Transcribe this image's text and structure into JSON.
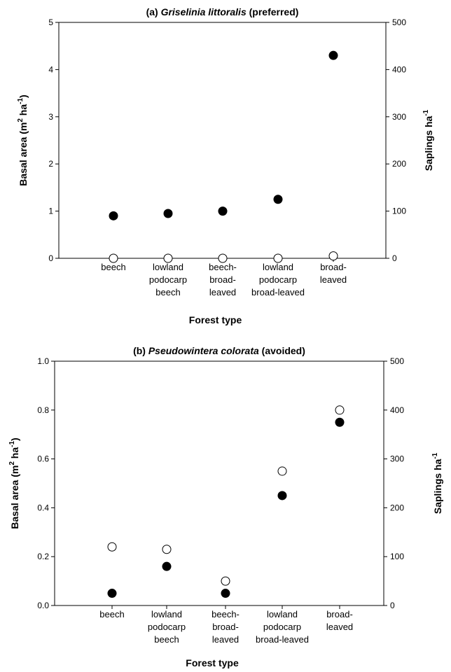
{
  "chart_data": [
    {
      "type": "scatter",
      "title_prefix": "(a) ",
      "title_species": "Griselinia littoralis",
      "title_suffix": " (preferred)",
      "xlabel": "Forest type",
      "ylabel_left": "Basal area (m",
      "ylabel_left_sup1": "2",
      "ylabel_left_mid": " ha",
      "ylabel_left_sup2": "-1",
      "ylabel_left_end": ")",
      "ylabel_right": "Saplings ha",
      "ylabel_right_sup": "-1",
      "categories": [
        [
          "beech"
        ],
        [
          "lowland",
          "podocarp",
          "beech"
        ],
        [
          "beech-",
          "broad-",
          "leaved"
        ],
        [
          "lowland",
          "podocarp",
          "broad-leaved"
        ],
        [
          "broad-",
          "leaved"
        ]
      ],
      "ylim_left": [
        0,
        5
      ],
      "ylim_right": [
        0,
        500
      ],
      "yticks_left": [
        "0",
        "1",
        "2",
        "3",
        "4",
        "5"
      ],
      "yticks_right": [
        "0",
        "100",
        "200",
        "300",
        "400",
        "500"
      ],
      "series": [
        {
          "marker": "filled",
          "axis": "left",
          "values": [
            0.9,
            0.95,
            1.0,
            1.25,
            4.3
          ]
        },
        {
          "marker": "open",
          "axis": "right",
          "values": [
            0,
            0,
            0,
            0,
            5
          ]
        }
      ]
    },
    {
      "type": "scatter",
      "title_prefix": "(b) ",
      "title_species": "Pseudowintera colorata",
      "title_suffix": " (avoided)",
      "xlabel": "Forest type",
      "ylabel_left": "Basal area (m",
      "ylabel_left_sup1": "2",
      "ylabel_left_mid": " ha",
      "ylabel_left_sup2": "-1",
      "ylabel_left_end": ")",
      "ylabel_right": "Saplings ha",
      "ylabel_right_sup": "-1",
      "categories": [
        [
          "beech"
        ],
        [
          "lowland",
          "podocarp",
          "beech"
        ],
        [
          "beech-",
          "broad-",
          "leaved"
        ],
        [
          "lowland",
          "podocarp",
          "broad-leaved"
        ],
        [
          "broad-",
          "leaved"
        ]
      ],
      "ylim_left": [
        0,
        1
      ],
      "ylim_right": [
        0,
        500
      ],
      "yticks_left": [
        "0.0",
        "0.2",
        "0.4",
        "0.6",
        "0.8",
        "1.0"
      ],
      "yticks_right": [
        "0",
        "100",
        "200",
        "300",
        "400",
        "500"
      ],
      "series": [
        {
          "marker": "filled",
          "axis": "left",
          "values": [
            0.05,
            0.16,
            0.05,
            0.45,
            0.75
          ]
        },
        {
          "marker": "open",
          "axis": "right",
          "values": [
            120,
            115,
            50,
            275,
            400
          ]
        }
      ]
    }
  ]
}
